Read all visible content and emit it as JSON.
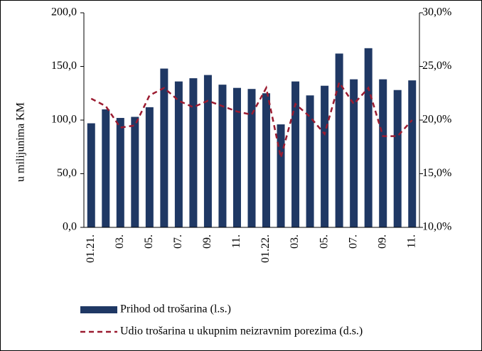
{
  "chart_data": {
    "type": "bar",
    "y_label": "u milijunima KM",
    "categories": [
      "01.21.",
      null,
      "03.",
      null,
      "05.",
      null,
      "07.",
      null,
      "09.",
      null,
      "11.",
      null,
      "01.22.",
      null,
      "03.",
      null,
      "05.",
      null,
      "07.",
      null,
      "09.",
      null,
      "11."
    ],
    "series": [
      {
        "name": "Prihod od trošarina (l.s.)",
        "color": "#1f3864",
        "type": "bar",
        "values": [
          97,
          110,
          102,
          103,
          112,
          148,
          136,
          139,
          142,
          133,
          130,
          129,
          125,
          96,
          136,
          123,
          132,
          162,
          138,
          167,
          138,
          128,
          137
        ]
      },
      {
        "name": "Udio trošarina u ukupnim neizravnim porezima (d.s.)",
        "color": "#9b1b30",
        "type": "line",
        "axis": "y2",
        "values": [
          22.0,
          21.3,
          19.3,
          19.5,
          22.3,
          23.0,
          21.8,
          21.2,
          21.8,
          21.3,
          20.8,
          20.5,
          23.0,
          16.5,
          21.5,
          20.3,
          18.7,
          23.5,
          21.5,
          23.0,
          18.5,
          18.5,
          20.0
        ]
      }
    ],
    "ylim": [
      0,
      200
    ],
    "yticks": [
      {
        "value": 0,
        "label": "0,0"
      },
      {
        "value": 50,
        "label": "50,0"
      },
      {
        "value": 100,
        "label": "100,0"
      },
      {
        "value": 150,
        "label": "150,0"
      },
      {
        "value": 200,
        "label": "200,0"
      }
    ],
    "y2lim": [
      10,
      30
    ],
    "y2ticks": [
      {
        "value": 10,
        "label": "10,0%"
      },
      {
        "value": 15,
        "label": "15,0%"
      },
      {
        "value": 20,
        "label": "20,0%"
      },
      {
        "value": 25,
        "label": "25,0%"
      },
      {
        "value": 30,
        "label": "30,0%"
      }
    ],
    "legend": "bottom"
  }
}
